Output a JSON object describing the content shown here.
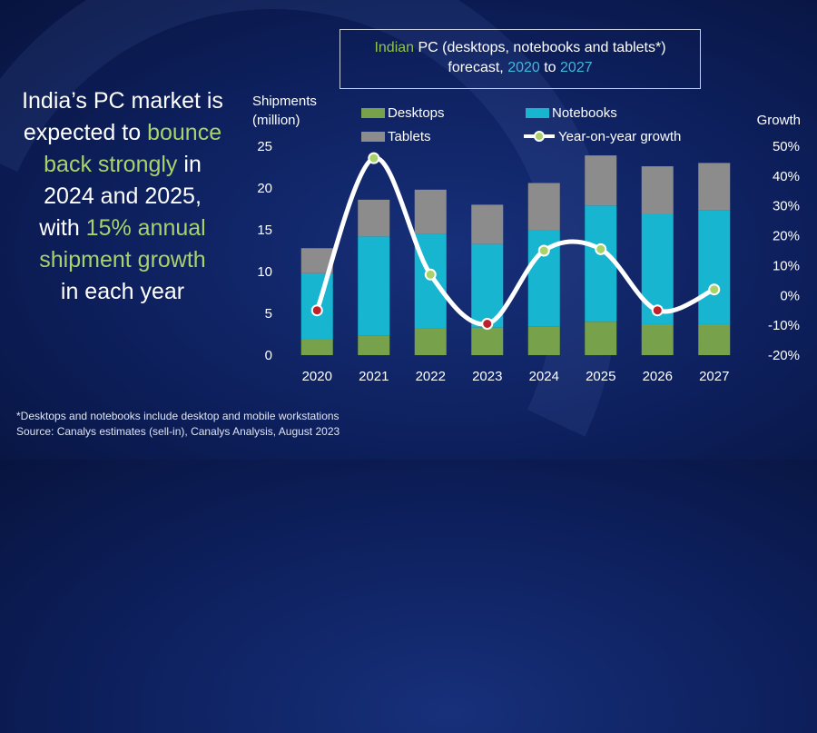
{
  "headline": {
    "line1": "India’s PC market is",
    "line2a": "expected to ",
    "line2b": "bounce",
    "line3a": "back strongly",
    "line3b": " in",
    "line4": "2024 and 2025,",
    "line5a": "with ",
    "line5b": "15% annual",
    "line6": "shipment growth",
    "line7": "in each year"
  },
  "title": {
    "part1": "Indian",
    "part2": " PC (desktops, notebooks and tablets*)",
    "part3": "forecast, ",
    "part4": "2020",
    "part5": " to ",
    "part6": "2027"
  },
  "footnote": {
    "line1": "*Desktops and notebooks include desktop and mobile workstations",
    "line2": "Source: Canalys estimates (sell-in), Canalys Analysis, August 2023"
  },
  "colors": {
    "desktops": "#77a14a",
    "notebooks": "#17b5cf",
    "tablets": "#8c8c8c",
    "growth_line": "#ffffff",
    "growth_up": "#a9d36a",
    "growth_down": "#c0202a"
  },
  "chart_data": {
    "type": "bar",
    "stacked": true,
    "categories": [
      "2020",
      "2021",
      "2022",
      "2023",
      "2024",
      "2025",
      "2026",
      "2027"
    ],
    "ylabel": "Shipments\n(million)",
    "ylabel_line1": "Shipments",
    "ylabel_line2": "(million)",
    "y2label": "Growth",
    "ylim": [
      0,
      25
    ],
    "yticks": [
      0,
      5,
      10,
      15,
      20,
      25
    ],
    "y2lim": [
      -0.2,
      0.5
    ],
    "y2ticks": [
      "-20%",
      "-10%",
      "0%",
      "10%",
      "20%",
      "30%",
      "40%",
      "50%"
    ],
    "legend_position": "top",
    "series": [
      {
        "name": "Desktops",
        "values": [
          1.9,
          2.3,
          3.2,
          3.3,
          3.4,
          4.0,
          3.7,
          3.7
        ]
      },
      {
        "name": "Notebooks",
        "values": [
          7.9,
          11.9,
          11.3,
          10.0,
          11.5,
          13.9,
          13.2,
          13.6
        ]
      },
      {
        "name": "Tablets",
        "values": [
          3.0,
          4.4,
          5.3,
          4.7,
          5.7,
          6.0,
          5.7,
          5.7
        ]
      }
    ],
    "line_series": {
      "name": "Year-on-year growth",
      "values": [
        -0.05,
        0.46,
        0.07,
        -0.095,
        0.15,
        0.155,
        -0.05,
        0.02
      ]
    }
  }
}
